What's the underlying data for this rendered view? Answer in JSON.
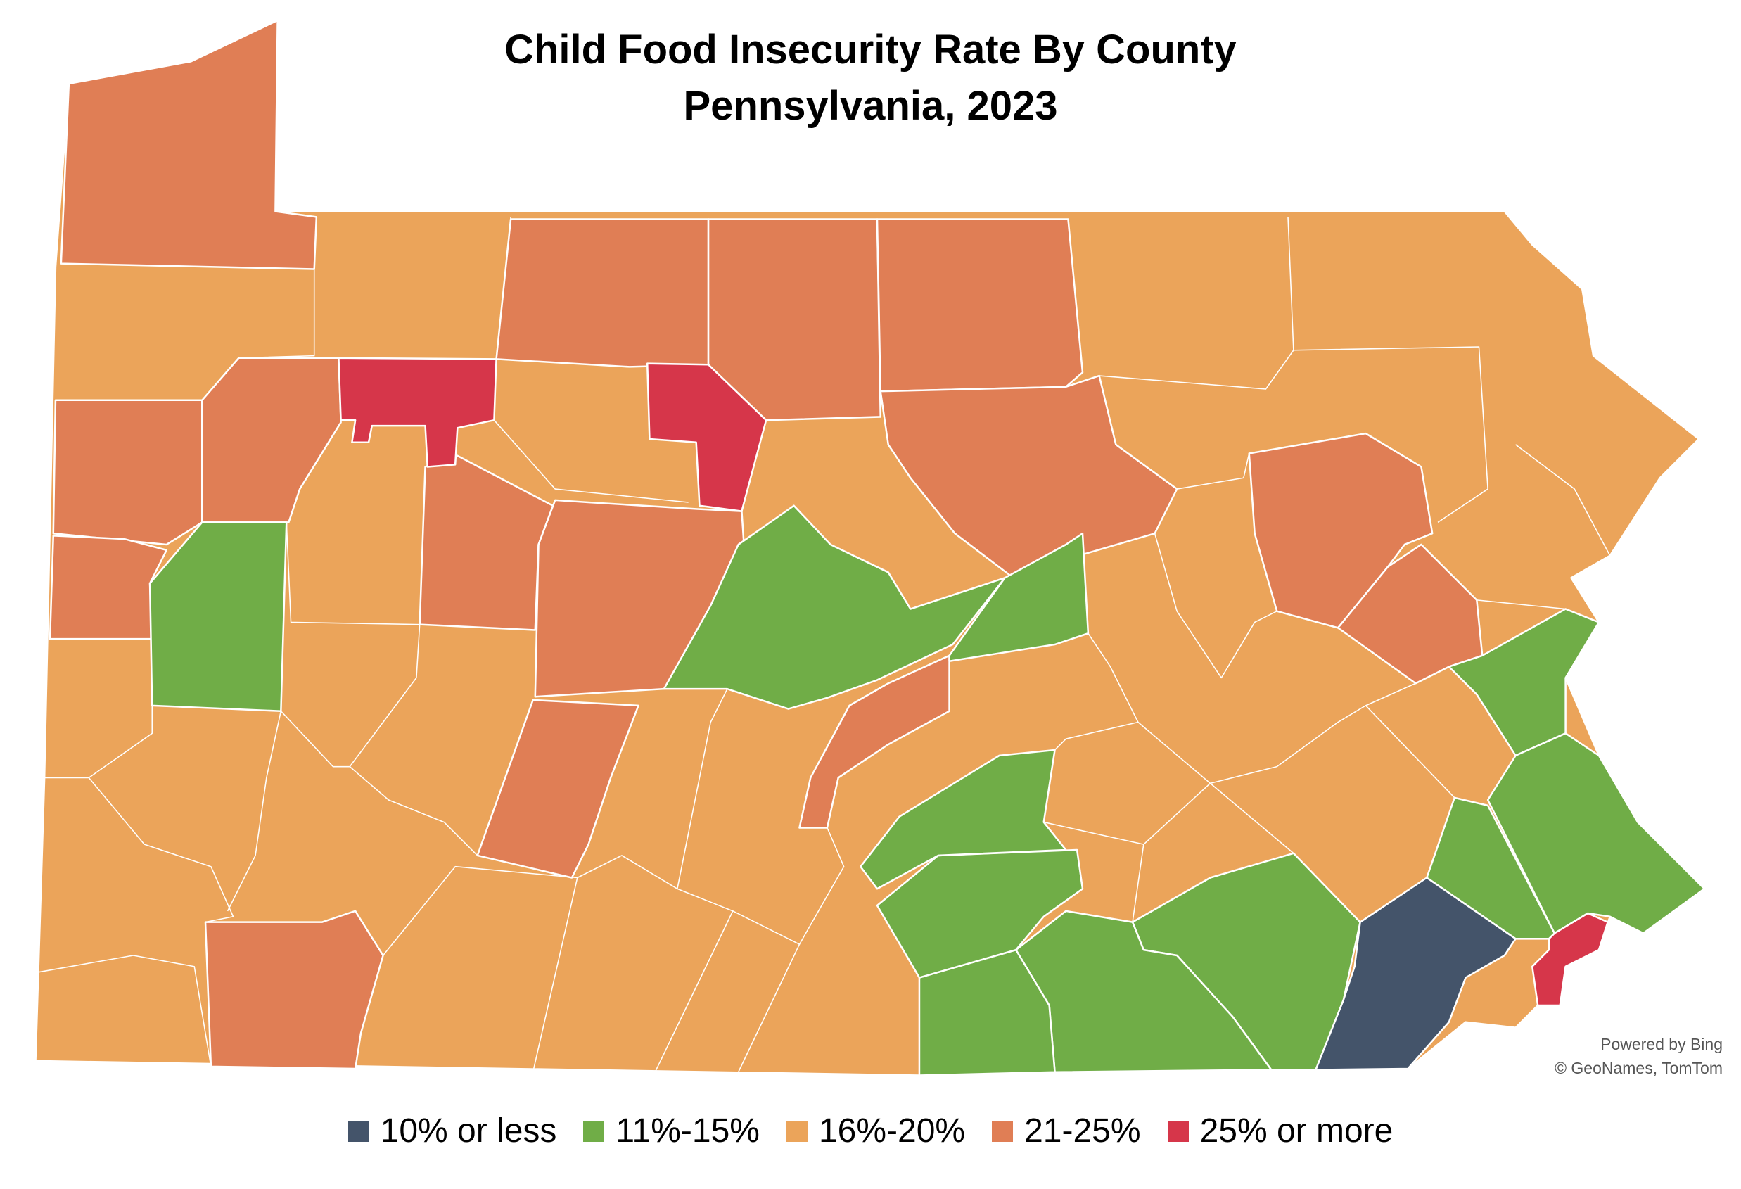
{
  "title": {
    "line1": "Child Food Insecurity Rate By County",
    "line2": "Pennsylvania, 2023"
  },
  "legend": [
    {
      "label": "10% or less",
      "color": "#44546A"
    },
    {
      "label": "11%-15%",
      "color": "#70AD47"
    },
    {
      "label": "16%-20%",
      "color": "#EBA45A"
    },
    {
      "label": "21-25%",
      "color": "#E07E55"
    },
    {
      "label": "25% or more",
      "color": "#D6364A"
    }
  ],
  "attribution": {
    "line1": "Powered by Bing",
    "line2": "© GeoNames, TomTom"
  }
}
